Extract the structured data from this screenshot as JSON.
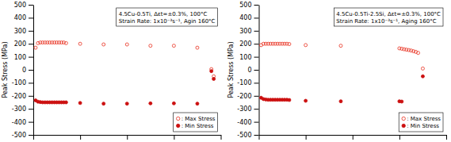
{
  "chart_data": [
    {
      "type": "scatter",
      "title": "4.5Cu-0.5Ti, Δεt=±0.3%, 100°C",
      "subtitle": "Strain Rate: 1x10⁻³s⁻¹, Agin 160°C",
      "y_label": "Peak Stress (MPa)",
      "xlim": [
        0,
        80
      ],
      "xticks": [
        0,
        20,
        40,
        60,
        80
      ],
      "ylim": [
        -500,
        500
      ],
      "yticks": [
        -500,
        -400,
        -300,
        -200,
        -100,
        0,
        100,
        200,
        300,
        400,
        500
      ],
      "tick_labels": "y",
      "legend": "lower right",
      "series": [
        {
          "name": ": Max Stress",
          "color": "#E83020",
          "marker": "open-circle",
          "x": [
            1,
            2,
            3,
            4,
            5,
            6,
            7,
            8,
            9,
            10,
            11,
            12,
            13,
            14,
            20,
            30,
            40,
            50,
            60,
            70,
            76,
            77
          ],
          "values": [
            170,
            205,
            210,
            210,
            210,
            210,
            210,
            210,
            210,
            210,
            210,
            210,
            210,
            205,
            200,
            195,
            195,
            185,
            185,
            170,
            5,
            -50
          ]
        },
        {
          "name": ": Min Stress",
          "color": "#CC1010",
          "marker": "circle",
          "x": [
            1,
            2,
            3,
            4,
            5,
            6,
            7,
            8,
            9,
            10,
            11,
            12,
            13,
            14,
            20,
            30,
            40,
            50,
            60,
            70,
            76,
            77
          ],
          "values": [
            -235,
            -245,
            -248,
            -250,
            -250,
            -250,
            -250,
            -250,
            -250,
            -250,
            -250,
            -250,
            -250,
            -250,
            -255,
            -260,
            -260,
            -258,
            -258,
            -260,
            -10,
            -70
          ]
        }
      ]
    },
    {
      "type": "scatter",
      "title": "4.5Cu-0.5Ti-2.5Si, Δεt=±0.3%, 100°C",
      "subtitle": "Strain Rate: 1x10⁻³s⁻¹, Aging 160°C",
      "y_label": "Peak Stress (MPa)",
      "xlim": [
        0,
        80
      ],
      "xticks": [
        0,
        20,
        40,
        60,
        80
      ],
      "ylim": [
        -500,
        500
      ],
      "yticks": [
        -500,
        -400,
        -300,
        -200,
        -100,
        0,
        100,
        200,
        300,
        400,
        500
      ],
      "tick_labels": "y",
      "legend": "lower right",
      "series": [
        {
          "name": ": Max Stress",
          "color": "#E83020",
          "marker": "open-circle",
          "x": [
            1,
            2,
            3,
            4,
            5,
            6,
            7,
            8,
            9,
            10,
            11,
            12,
            13,
            20,
            35,
            60,
            61,
            62,
            63,
            64,
            65,
            66,
            67,
            68,
            70
          ],
          "values": [
            190,
            200,
            200,
            200,
            200,
            200,
            200,
            200,
            200,
            200,
            200,
            200,
            198,
            190,
            185,
            165,
            162,
            158,
            155,
            152,
            148,
            143,
            138,
            130,
            10
          ]
        },
        {
          "name": ": Min Stress",
          "color": "#CC1010",
          "marker": "circle",
          "x": [
            1,
            2,
            3,
            4,
            5,
            6,
            7,
            8,
            9,
            10,
            11,
            12,
            13,
            20,
            35,
            60,
            61,
            70
          ],
          "values": [
            -215,
            -225,
            -228,
            -230,
            -230,
            -230,
            -230,
            -230,
            -230,
            -230,
            -230,
            -230,
            -232,
            -238,
            -242,
            -242,
            -244,
            -50
          ]
        }
      ]
    }
  ]
}
